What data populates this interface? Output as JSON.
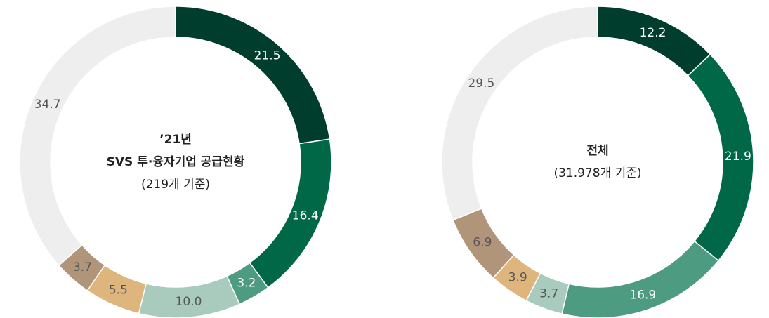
{
  "chart_data": [
    {
      "type": "donut",
      "center_lines": [
        "’21년",
        "SVS 투·융자기업 공급현황",
        "(219개 기준)"
      ],
      "values": [
        21.5,
        16.4,
        3.2,
        10.0,
        5.5,
        3.7,
        34.7
      ],
      "value_labels": [
        "21.5",
        "16.4",
        "3.2",
        "10.0",
        "5.5",
        "3.7",
        "34.7"
      ],
      "colors": [
        "#003d2c",
        "#006747",
        "#4d9b80",
        "#a8cbbd",
        "#dfb57e",
        "#b0957a",
        "#eeeeee"
      ]
    },
    {
      "type": "donut",
      "center_lines": [
        "전체",
        "(31.978개 기준)"
      ],
      "values": [
        12.2,
        21.9,
        16.9,
        3.7,
        3.9,
        6.9,
        29.5
      ],
      "value_labels": [
        "12.2",
        "21.9",
        "16.9",
        "3.7",
        "3.9",
        "6.9",
        "29.5"
      ],
      "colors": [
        "#003d2c",
        "#006747",
        "#4d9b80",
        "#a8cbbd",
        "#dfb57e",
        "#b0957a",
        "#eeeeee"
      ]
    }
  ]
}
